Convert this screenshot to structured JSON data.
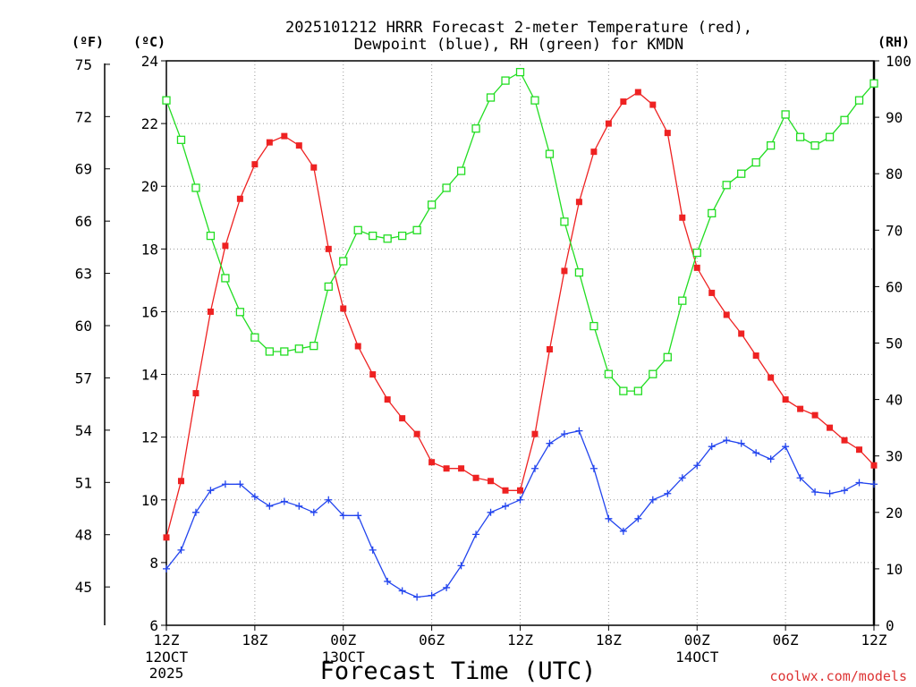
{
  "chart_data": {
    "type": "line",
    "title_line1": "2025101212 HRRR Forecast 2-meter Temperature (red),",
    "title_line2": "Dewpoint (blue), RH (green) for KMDN",
    "xlabel": "Forecast Time (UTC)",
    "credit": "coolwx.com/models",
    "unit_f": "(ºF)",
    "unit_c": "(ºC)",
    "unit_rh": "(RH)",
    "x_range": [
      0,
      48
    ],
    "celsius_range": [
      6,
      24
    ],
    "rh_range": [
      0,
      100
    ],
    "x_ticks": [
      {
        "x": 0,
        "l1": "12Z",
        "l2": "12OCT",
        "l3": "2025"
      },
      {
        "x": 6,
        "l1": "18Z"
      },
      {
        "x": 12,
        "l1": "00Z",
        "l2": "13OCT"
      },
      {
        "x": 18,
        "l1": "06Z"
      },
      {
        "x": 24,
        "l1": "12Z"
      },
      {
        "x": 30,
        "l1": "18Z"
      },
      {
        "x": 36,
        "l1": "00Z",
        "l2": "14OCT"
      },
      {
        "x": 42,
        "l1": "06Z"
      },
      {
        "x": 48,
        "l1": "12Z"
      }
    ],
    "celsius_ticks": [
      "6",
      "8",
      "10",
      "12",
      "14",
      "16",
      "18",
      "20",
      "22",
      "24"
    ],
    "fahrenheit_ticks": [
      "45",
      "48",
      "51",
      "54",
      "57",
      "60",
      "63",
      "66",
      "69",
      "72",
      "75"
    ],
    "rh_ticks": [
      "0",
      "10",
      "20",
      "30",
      "40",
      "50",
      "60",
      "70",
      "80",
      "90",
      "100"
    ],
    "series": [
      {
        "name": "2-meter Temperature",
        "unit": "°C",
        "color": "#ee2222",
        "marker": "filled-square",
        "values": [
          8.8,
          10.6,
          13.4,
          16.0,
          18.1,
          19.6,
          20.7,
          21.4,
          21.6,
          21.3,
          20.6,
          18.0,
          16.1,
          14.9,
          14.0,
          13.2,
          12.6,
          12.1,
          11.2,
          11.0,
          11.0,
          10.7,
          10.6,
          10.3,
          10.3,
          12.1,
          14.8,
          17.3,
          19.5,
          21.1,
          22.0,
          22.7,
          23.0,
          22.6,
          21.7,
          19.0,
          17.4,
          16.6,
          15.9,
          15.3,
          14.6,
          13.9,
          13.2,
          12.9,
          12.7,
          12.3,
          11.9,
          11.6,
          11.1
        ]
      },
      {
        "name": "Dewpoint",
        "unit": "°C",
        "color": "#2244ee",
        "marker": "plus",
        "values": [
          7.8,
          8.4,
          9.6,
          10.3,
          10.5,
          10.5,
          10.1,
          9.8,
          9.95,
          9.8,
          9.6,
          10.0,
          9.5,
          9.5,
          8.4,
          7.4,
          7.1,
          6.9,
          6.95,
          7.2,
          7.9,
          8.9,
          9.6,
          9.8,
          10.0,
          11.0,
          11.8,
          12.1,
          12.2,
          11.0,
          9.4,
          9.0,
          9.4,
          10.0,
          10.2,
          10.7,
          11.1,
          11.7,
          11.9,
          11.8,
          11.5,
          11.3,
          11.7,
          10.7,
          10.25,
          10.2,
          10.3,
          10.55,
          10.5
        ]
      },
      {
        "name": "RH",
        "unit": "%",
        "color": "#22dd22",
        "marker": "open-square",
        "values": [
          93,
          86,
          77.5,
          69,
          61.5,
          55.5,
          51,
          48.5,
          48.5,
          49,
          49.5,
          60,
          64.5,
          70,
          69,
          68.5,
          69,
          70,
          74.5,
          77.5,
          80.5,
          88,
          93.5,
          96.5,
          98,
          93,
          83.5,
          71.5,
          62.5,
          53,
          44.5,
          41.5,
          41.5,
          44.5,
          47.5,
          57.5,
          66,
          73,
          78,
          80,
          82,
          85,
          90.5,
          86.5,
          85,
          86.5,
          89.5,
          93,
          96
        ]
      }
    ]
  }
}
